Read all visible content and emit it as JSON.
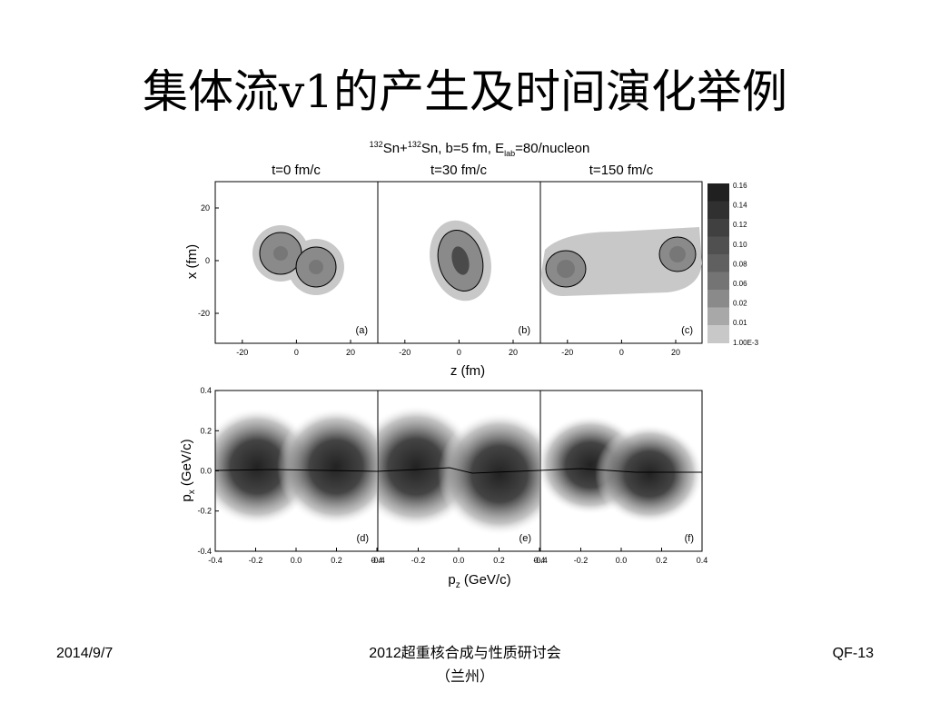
{
  "header": {
    "title": "集体流v1的产生及时间演化举例"
  },
  "figure": {
    "title": {
      "mass1": "132",
      "part1": "Sn+",
      "mass2": "132",
      "part2": "Sn, b=5 fm, E",
      "subscript": "lab",
      "part3": "=80/nucleon"
    },
    "panel_titles": [
      "t=0 fm/c",
      "t=30 fm/c",
      "t=150 fm/c"
    ],
    "top_row": {
      "y_label": "x (fm)",
      "x_label": "z (fm)",
      "y_ticks": [
        "20",
        "0",
        "-20"
      ],
      "x_ticks": [
        "-20",
        "0",
        "20"
      ],
      "panel_labels": [
        "(a)",
        "(b)",
        "(c)"
      ]
    },
    "colorbar": {
      "labels": [
        "0.16",
        "0.14",
        "0.12",
        "0.10",
        "0.08",
        "0.06",
        "0.02",
        "0.01",
        "1.00E-3"
      ]
    },
    "bottom_row": {
      "y_label": {
        "main": "p",
        "sub": "x",
        "rest": " (GeV/c)"
      },
      "x_label": {
        "main": "p",
        "sub": "z",
        "rest": " (GeV/c)"
      },
      "y_ticks": [
        "0.4",
        "0.2",
        "0.0",
        "-0.2",
        "-0.4"
      ],
      "x_ticks": [
        "-0.4",
        "-0.2",
        "0.0",
        "0.2",
        "0.4"
      ],
      "panel_labels": [
        "(d)",
        "(e)",
        "(f)"
      ]
    }
  },
  "footer": {
    "date": "2014/9/7",
    "meeting": "2012超重核合成与性质研讨会",
    "place": "（兰州）",
    "code": "QF-13"
  }
}
